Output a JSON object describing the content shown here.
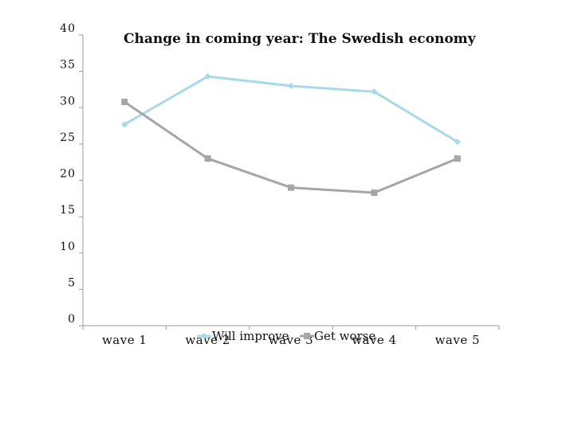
{
  "chart_data": {
    "type": "line",
    "title": "Change in coming year: The Swedish economy",
    "xlabel": "",
    "ylabel": "",
    "categories": [
      "wave 1",
      "wave 2",
      "wave 3",
      "wave 4",
      "wave 5"
    ],
    "ylim": [
      0,
      40
    ],
    "yticks": [
      0,
      5,
      10,
      15,
      20,
      25,
      30,
      35,
      40
    ],
    "grid": false,
    "legend_position": "bottom",
    "series": [
      {
        "name": "Will improve",
        "values": [
          27.7,
          34.3,
          33.0,
          32.2,
          25.3
        ],
        "color": "#a8d8ea",
        "marker": "diamond"
      },
      {
        "name": "Get worse",
        "values": [
          30.8,
          23.0,
          19.0,
          18.3,
          23.0
        ],
        "color": "#a6a6a6",
        "marker": "square"
      }
    ]
  }
}
